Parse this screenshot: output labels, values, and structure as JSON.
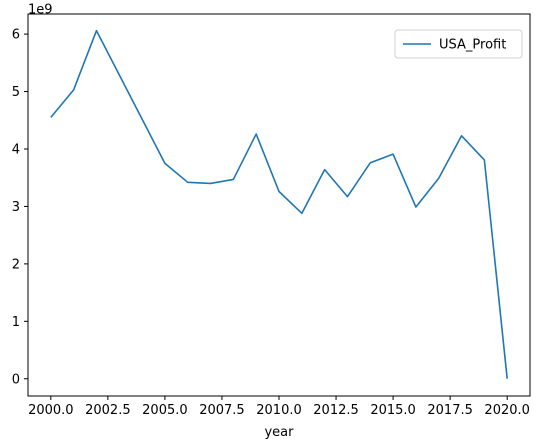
{
  "chart_data": {
    "type": "line",
    "xlabel": "year",
    "ylabel": "",
    "y_offset_text": "1e9",
    "xlim": [
      1999,
      2021
    ],
    "ylim": [
      -0.3,
      6.35
    ],
    "y_scale_multiplier": 1000000000,
    "x_ticks": [
      2000.0,
      2002.5,
      2005.0,
      2007.5,
      2010.0,
      2012.5,
      2015.0,
      2017.5,
      2020.0
    ],
    "x_tick_labels": [
      "2000.0",
      "2002.5",
      "2005.0",
      "2007.5",
      "2010.0",
      "2012.5",
      "2015.0",
      "2017.5",
      "2020.0"
    ],
    "y_ticks": [
      0,
      1,
      2,
      3,
      4,
      5,
      6
    ],
    "y_tick_labels": [
      "0",
      "1",
      "2",
      "3",
      "4",
      "5",
      "6"
    ],
    "legend_position": "top-right",
    "grid": false,
    "series": [
      {
        "name": "USA_Profit",
        "color": "#1f77b4",
        "x": [
          2000,
          2001,
          2002,
          2003,
          2004,
          2005,
          2006,
          2007,
          2008,
          2009,
          2010,
          2011,
          2012,
          2013,
          2014,
          2015,
          2016,
          2017,
          2018,
          2019,
          2020
        ],
        "y": [
          4.55,
          5.03,
          6.06,
          5.29,
          4.52,
          3.75,
          3.42,
          3.4,
          3.47,
          4.26,
          3.26,
          2.88,
          3.64,
          3.17,
          3.76,
          3.91,
          2.99,
          3.49,
          4.23,
          3.81,
          0.0
        ]
      }
    ]
  }
}
